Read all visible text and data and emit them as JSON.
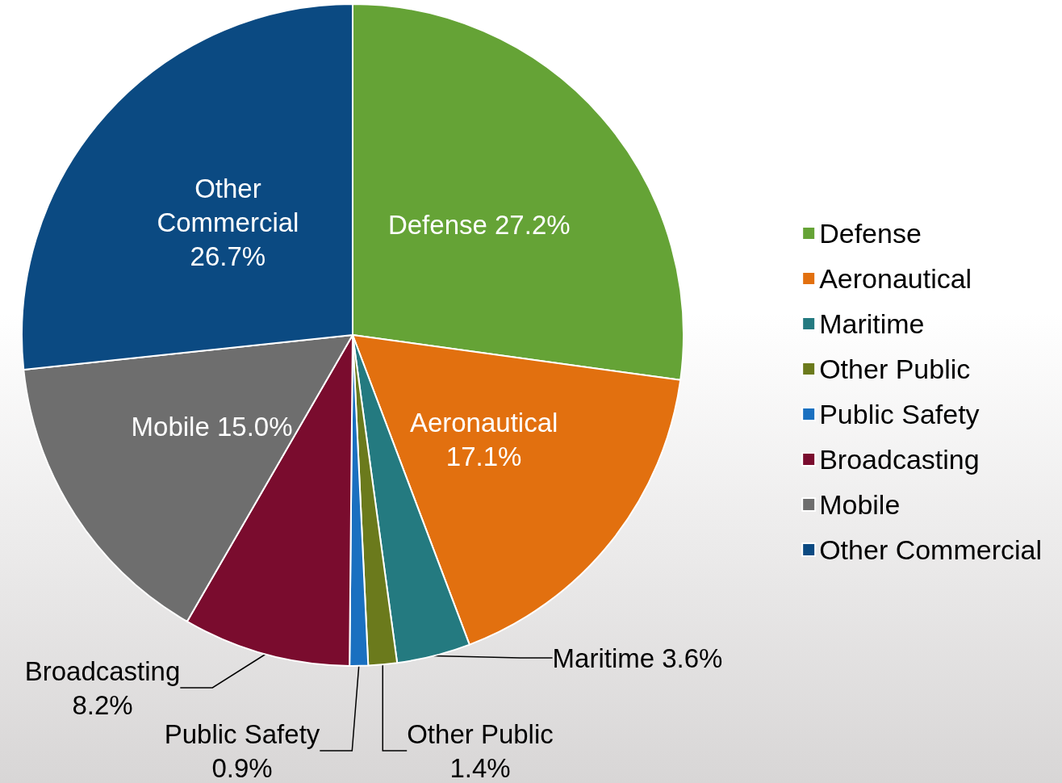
{
  "chart_data": {
    "type": "pie",
    "categories": [
      "Defense",
      "Aeronautical",
      "Maritime",
      "Other Public",
      "Public Safety",
      "Broadcasting",
      "Mobile",
      "Other Commercial"
    ],
    "values": [
      27.2,
      17.1,
      3.6,
      1.4,
      0.9,
      8.2,
      15.0,
      26.7
    ],
    "colors": [
      "#65a336",
      "#e2700f",
      "#247a80",
      "#6b7a1c",
      "#1a70c0",
      "#7a0c2e",
      "#6e6e6e",
      "#0b4a82"
    ],
    "value_labels": [
      "27.2%",
      "17.1%",
      "3.6%",
      "1.4%",
      "0.9%",
      "8.2%",
      "15.0%",
      "26.7%"
    ],
    "legend": "right"
  }
}
